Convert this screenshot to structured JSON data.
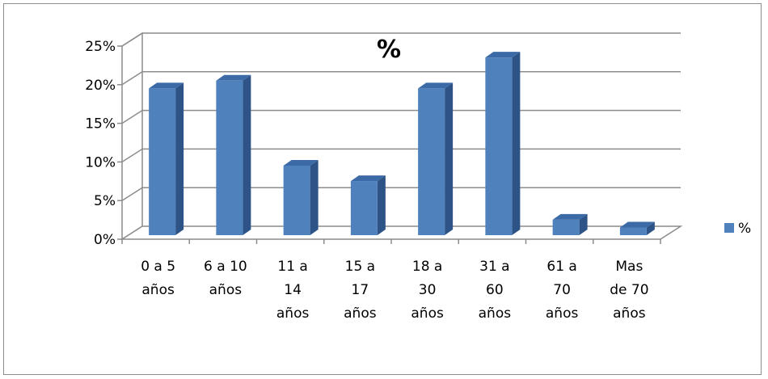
{
  "chart_data": {
    "type": "bar",
    "title": "%",
    "categories": [
      [
        "0 a 5",
        "años"
      ],
      [
        "6 a 10",
        "años"
      ],
      [
        "11 a",
        "14",
        "años"
      ],
      [
        "15 a",
        "17",
        "años"
      ],
      [
        "18 a",
        "30",
        "años"
      ],
      [
        "31 a",
        "60",
        "años"
      ],
      [
        "61 a",
        "70",
        "años"
      ],
      [
        "Mas",
        "de 70",
        "años"
      ]
    ],
    "series": [
      {
        "name": "%",
        "values": [
          19,
          20,
          9,
          7,
          19,
          23,
          2,
          1
        ]
      }
    ],
    "yticks": [
      "0%",
      "5%",
      "10%",
      "15%",
      "20%",
      "25%"
    ],
    "ylim": [
      0,
      25
    ],
    "grid": true,
    "legend_position": "right",
    "three_d": true,
    "colors": {
      "bar_front": "#4f81bd",
      "bar_side": "#2d5387",
      "bar_top": "#3c6aa6",
      "grid": "#8c8c8c"
    }
  }
}
